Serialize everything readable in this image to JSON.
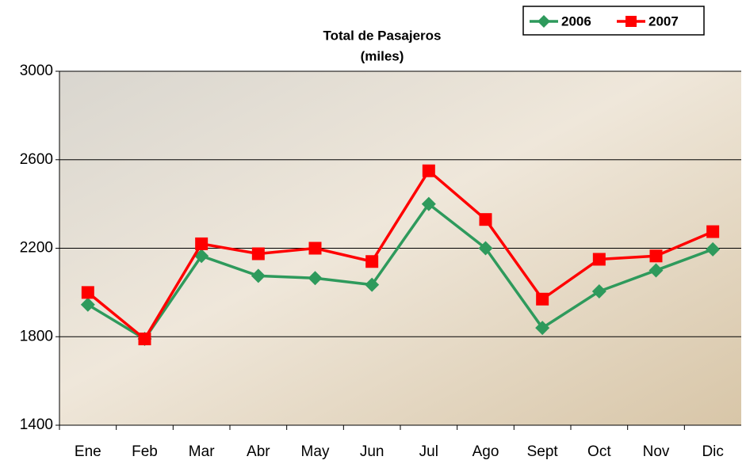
{
  "chart_data": {
    "type": "line",
    "title": "Total de Pasajeros",
    "subtitle": "(miles)",
    "categories": [
      "Ene",
      "Feb",
      "Mar",
      "Abr",
      "May",
      "Jun",
      "Jul",
      "Ago",
      "Sept",
      "Oct",
      "Nov",
      "Dic"
    ],
    "series": [
      {
        "name": "2006",
        "color": "#2e9a5c",
        "marker": "diamond",
        "values": [
          1945,
          1790,
          2165,
          2075,
          2065,
          2035,
          2400,
          2200,
          1840,
          2005,
          2100,
          2195
        ]
      },
      {
        "name": "2007",
        "color": "#ff0000",
        "marker": "square",
        "values": [
          2000,
          1790,
          2220,
          2175,
          2200,
          2140,
          2550,
          2330,
          1970,
          2150,
          2165,
          2275
        ]
      }
    ],
    "ylim": [
      1400,
      3000
    ],
    "yticks": [
      1400,
      1800,
      2200,
      2600,
      3000
    ],
    "grid": true,
    "legend": "top-right"
  }
}
